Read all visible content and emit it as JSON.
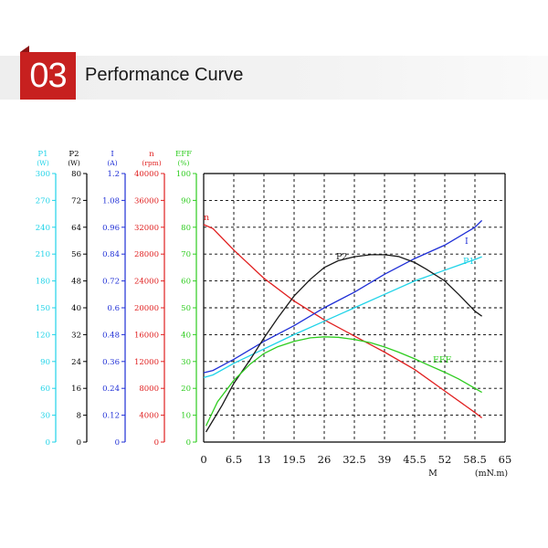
{
  "header": {
    "number": "03",
    "title": "Performance Curve"
  },
  "chart_data": {
    "type": "line",
    "grid": true,
    "xlabel_symbol": "M",
    "xlabel_unit": "(mN.m)",
    "x_ticks": [
      "0",
      "6.5",
      "13",
      "19.5",
      "26",
      "32.5",
      "39",
      "45.5",
      "52",
      "58.5",
      "65"
    ],
    "xlim": [
      0,
      65
    ],
    "axes": [
      {
        "key": "p1",
        "name": "P1",
        "unit": "(W)",
        "color": "#1fd3e8",
        "ticks": [
          "0",
          "30",
          "60",
          "90",
          "120",
          "150",
          "180",
          "210",
          "240",
          "270",
          "300"
        ]
      },
      {
        "key": "p2",
        "name": "P2",
        "unit": "(W)",
        "color": "#000000",
        "ticks": [
          "0",
          "8",
          "16",
          "24",
          "32",
          "40",
          "48",
          "56",
          "64",
          "72",
          "80"
        ]
      },
      {
        "key": "i",
        "name": "I",
        "unit": "(A)",
        "color": "#1f2fd6",
        "ticks": [
          "0",
          "0.12",
          "0.24",
          "0.36",
          "0.48",
          "0.6",
          "0.72",
          "0.84",
          "0.96",
          "1.08",
          "1.2"
        ]
      },
      {
        "key": "n",
        "name": "n",
        "unit": "(rpm)",
        "color": "#e01f1f",
        "ticks": [
          "0",
          "4000",
          "8000",
          "12000",
          "16000",
          "20000",
          "24000",
          "28000",
          "32000",
          "36000",
          "40000"
        ]
      },
      {
        "key": "eff",
        "name": "EFF",
        "unit": "(%)",
        "color": "#2ecc1f",
        "ticks": [
          "0",
          "10",
          "20",
          "30",
          "40",
          "50",
          "60",
          "70",
          "80",
          "90",
          "100"
        ]
      }
    ],
    "series": [
      {
        "name": "n",
        "axis": "n",
        "color": "#e01f1f",
        "x": [
          0,
          2,
          6.5,
          13,
          19.5,
          26,
          32.5,
          39,
          45.5,
          52,
          58.5,
          60
        ],
        "y": [
          32400,
          31800,
          28600,
          24400,
          21000,
          18200,
          15800,
          13400,
          10800,
          7600,
          4400,
          3600
        ]
      },
      {
        "name": "I",
        "axis": "i",
        "color": "#1f2fd6",
        "x": [
          0,
          2,
          6.5,
          13,
          19.5,
          26,
          32.5,
          39,
          45.5,
          52,
          58.5,
          60
        ],
        "y": [
          0.31,
          0.32,
          0.37,
          0.45,
          0.52,
          0.6,
          0.67,
          0.75,
          0.82,
          0.88,
          0.96,
          0.99
        ]
      },
      {
        "name": "P1",
        "axis": "p1",
        "color": "#1fd3e8",
        "x": [
          0,
          2,
          6.5,
          13,
          19.5,
          26,
          32.5,
          39,
          45.5,
          52,
          58.5,
          60
        ],
        "y": [
          72,
          75,
          88,
          104,
          120,
          135,
          150,
          165,
          180,
          192,
          204,
          207
        ]
      },
      {
        "name": "P2",
        "axis": "p2",
        "color": "#1a1a1a",
        "x": [
          0.5,
          4,
          6.5,
          10,
          13,
          16,
          19.5,
          23,
          26,
          29,
          32.5,
          36,
          39,
          42,
          45.5,
          48,
          52,
          55,
          58.5,
          60
        ],
        "y": [
          3,
          11,
          17.5,
          24.5,
          31,
          37,
          43.5,
          48.5,
          52,
          54,
          55.2,
          55.8,
          55.8,
          55.3,
          53.5,
          51.5,
          48,
          44,
          39,
          37.5
        ]
      },
      {
        "name": "EFF",
        "axis": "eff",
        "color": "#2ecc1f",
        "x": [
          0.5,
          3,
          6.5,
          10,
          13,
          16,
          19.5,
          23,
          26,
          29,
          32.5,
          36,
          39,
          42,
          45.5,
          48,
          52,
          55,
          58.5,
          60
        ],
        "y": [
          6,
          15,
          23,
          29,
          33,
          35.5,
          37.5,
          38.8,
          39.2,
          39,
          38.2,
          37,
          35.4,
          33.5,
          31,
          29,
          26,
          23.5,
          20,
          18.5
        ]
      }
    ]
  }
}
